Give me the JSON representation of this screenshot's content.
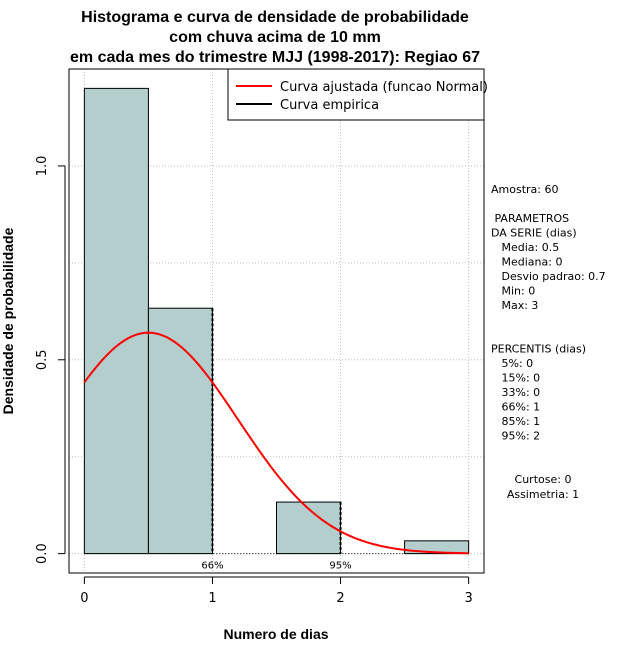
{
  "chart_data": {
    "type": "bar",
    "title_lines": [
      "Histograma e curva de densidade de probabilidade",
      "com chuva acima de 10 mm",
      "em cada mes do trimestre MJJ (1998-2017): Regiao 67"
    ],
    "xlabel": "Numero de dias",
    "ylabel": "Densidade de probabilidade",
    "xlim": [
      -0.12,
      3.12
    ],
    "ylim": [
      -0.05,
      1.25
    ],
    "x_ticks": [
      "0",
      "1",
      "2",
      "3"
    ],
    "y_ticks": [
      "0.0",
      "0.5",
      "1.0"
    ],
    "grid": true,
    "bins": [
      {
        "start": 0.0,
        "end": 0.5,
        "density": 1.2
      },
      {
        "start": 0.5,
        "end": 1.0,
        "density": 0.633
      },
      {
        "start": 1.0,
        "end": 1.5,
        "density": 0.0
      },
      {
        "start": 1.5,
        "end": 2.0,
        "density": 0.133
      },
      {
        "start": 2.0,
        "end": 2.5,
        "density": 0.0
      },
      {
        "start": 2.5,
        "end": 3.0,
        "density": 0.033
      }
    ],
    "bar_color": "#b4cdcd",
    "normal_curve": {
      "mean": 0.5,
      "sd": 0.7,
      "x_range": [
        0,
        3
      ],
      "color": "#ff0000"
    },
    "percentile_markers": [
      {
        "x": 1,
        "label": "66%"
      },
      {
        "x": 2,
        "label": "95%"
      }
    ],
    "legend": {
      "position": "top-right",
      "entries": [
        {
          "label": "Curva ajustada (funcao Normal)",
          "color": "#ff0000"
        },
        {
          "label": "Curva empirica",
          "color": "#000000"
        }
      ]
    }
  },
  "side_panel": {
    "lines": [
      "Amostra: 60",
      "",
      " PARAMETROS",
      "DA SERIE (dias)",
      "   Media: 0.5",
      "   Mediana: 0",
      "   Desvio padrao: 0.7",
      "   Min: 0",
      "   Max: 3",
      "",
      "",
      "PERCENTIS (dias)",
      "   5%: 0",
      "   15%: 0",
      "   33%: 0",
      "   66%: 1",
      "   85%: 1",
      "   95%: 2"
    ],
    "stats": [
      "Curtose: 0",
      "Assimetria: 1"
    ]
  }
}
